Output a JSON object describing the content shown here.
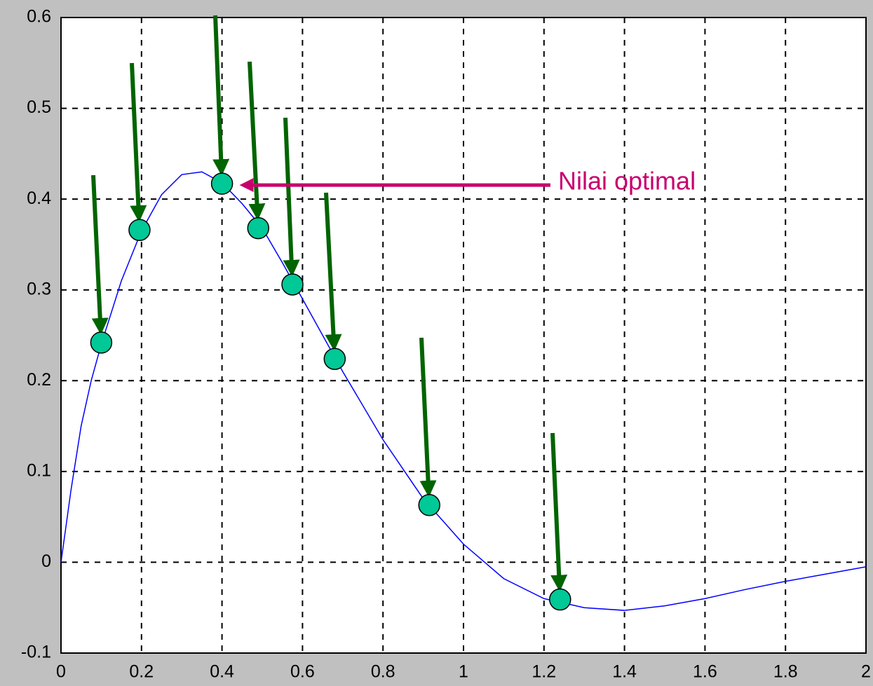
{
  "chart_data": {
    "type": "line",
    "xlim": [
      0,
      2
    ],
    "ylim": [
      -0.1,
      0.6
    ],
    "xticks": [
      0,
      0.2,
      0.4,
      0.6,
      0.8,
      1,
      1.2,
      1.4,
      1.6,
      1.8,
      2
    ],
    "yticks": [
      -0.1,
      0,
      0.1,
      0.2,
      0.3,
      0.4,
      0.5,
      0.6
    ],
    "grid": true,
    "series": [
      {
        "type": "line",
        "color": "#0000ff",
        "x": [
          0,
          0.025,
          0.05,
          0.075,
          0.1,
          0.15,
          0.2,
          0.25,
          0.3,
          0.35,
          0.4,
          0.45,
          0.5,
          0.55,
          0.6,
          0.65,
          0.7,
          0.8,
          0.9,
          1.0,
          1.1,
          1.2,
          1.3,
          1.4,
          1.5,
          1.6,
          1.7,
          1.8,
          1.9,
          2.0
        ],
        "values": [
          0,
          0.08,
          0.15,
          0.2,
          0.24,
          0.31,
          0.365,
          0.405,
          0.427,
          0.43,
          0.418,
          0.395,
          0.368,
          0.33,
          0.29,
          0.25,
          0.21,
          0.135,
          0.07,
          0.02,
          -0.018,
          -0.04,
          -0.05,
          -0.053,
          -0.048,
          -0.04,
          -0.03,
          -0.021,
          -0.013,
          -0.005
        ]
      },
      {
        "type": "scatter",
        "color": "#00c896",
        "x": [
          0.1,
          0.195,
          0.4,
          0.49,
          0.575,
          0.68,
          0.915,
          1.24
        ],
        "values": [
          0.242,
          0.366,
          0.417,
          0.368,
          0.306,
          0.224,
          0.063,
          -0.041
        ]
      }
    ],
    "annotation": {
      "text": "Nilai optimal",
      "color": "#c8006e"
    },
    "arrow_color": "#006400"
  }
}
